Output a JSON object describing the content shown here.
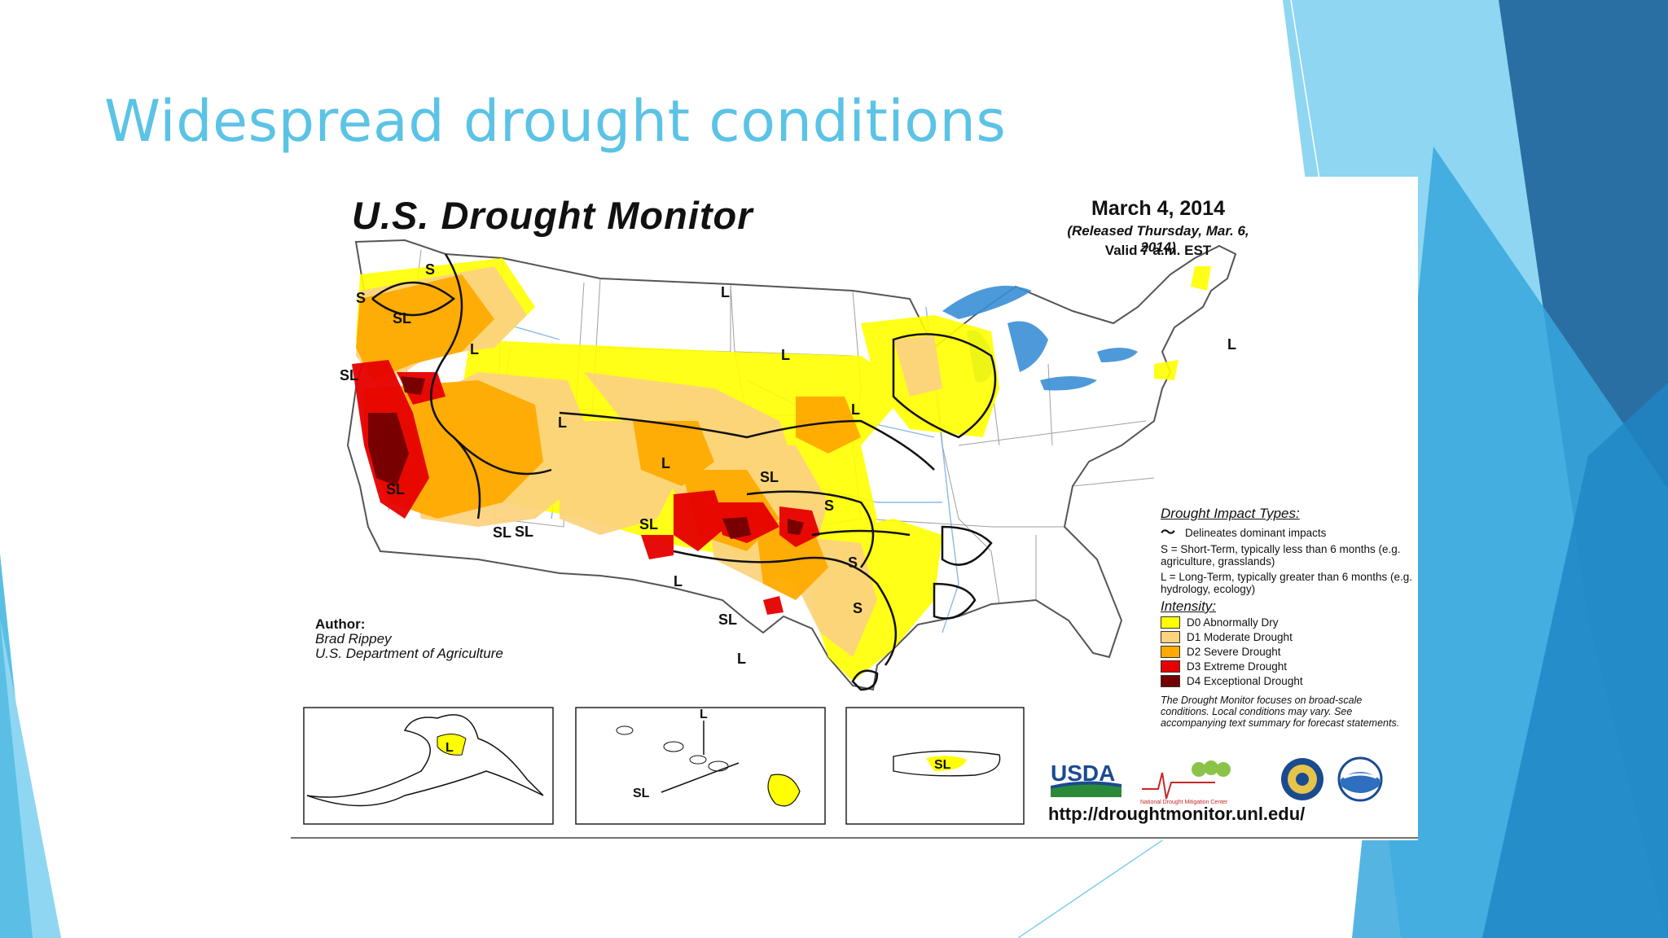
{
  "slide": {
    "title": "Widespread drought conditions"
  },
  "map": {
    "title": "U.S. Drought Monitor",
    "date": "March 4, 2014",
    "released": "(Released Thursday, Mar. 6, 2014)",
    "valid": "Valid 7 a.m. EST",
    "author_heading": "Author:",
    "author_name": "Brad Rippey",
    "author_org": "U.S. Department of Agriculture",
    "url": "http://droughtmonitor.unl.edu/",
    "impact_heading": "Drought Impact Types:",
    "impact_line": "Delineates dominant impacts",
    "impact_short": "S = Short-Term, typically less than 6 months (e.g. agriculture, grasslands)",
    "impact_long": "L = Long-Term, typically greater than 6 months (e.g. hydrology, ecology)",
    "intensity_heading": "Intensity:",
    "intensity": [
      {
        "label": "D0 Abnormally Dry",
        "color": "#ffff00"
      },
      {
        "label": "D1 Moderate Drought",
        "color": "#fcd37f"
      },
      {
        "label": "D2 Severe Drought",
        "color": "#ffaa00"
      },
      {
        "label": "D3 Extreme Drought",
        "color": "#e60000"
      },
      {
        "label": "D4 Exceptional Drought",
        "color": "#730000"
      }
    ],
    "note": "The Drought Monitor focuses on broad-scale conditions. Local conditions may vary. See accompanying text summary for forecast statements.",
    "region_labels": [
      "S",
      "S",
      "SL",
      "L",
      "SL",
      "L",
      "L",
      "L",
      "L",
      "SL",
      "SL",
      "SL",
      "S",
      "S",
      "L",
      "SL",
      "L",
      "S",
      "L",
      "L",
      "SL",
      "SL"
    ],
    "logos": {
      "usda": "USDA",
      "ndmc": "National Drought Mitigation Center"
    }
  },
  "colors": {
    "title": "#5bc3e6",
    "accent_dark": "#1f5f8f",
    "accent_mid": "#2e9ed6",
    "accent_light": "#7fd0f0"
  }
}
